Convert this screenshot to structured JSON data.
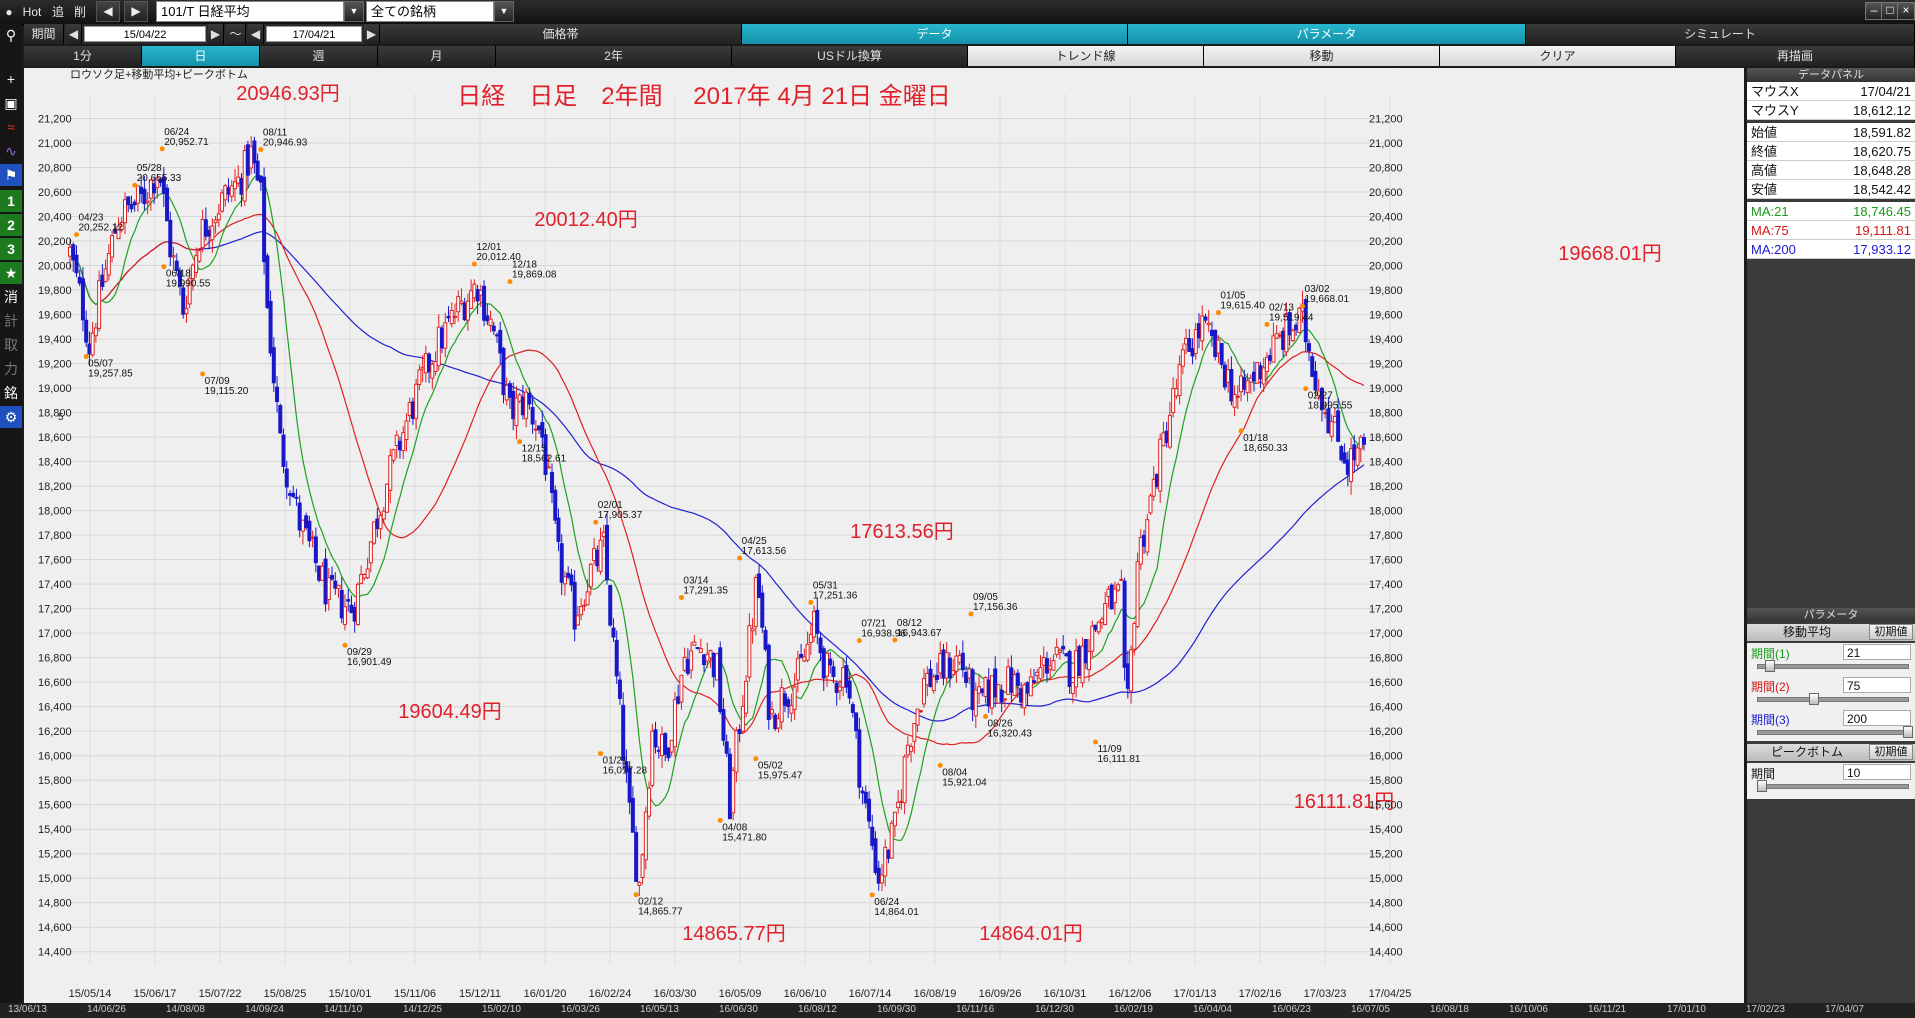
{
  "topbar": {
    "hot": "Hot",
    "tsui": "追",
    "sakujo": "削",
    "ticker": "101/T 日経平均",
    "universe": "全ての銘柄",
    "tabs": [
      "価格帯",
      "データ",
      "パラメータ",
      "シミュレート"
    ]
  },
  "row1": {
    "kikan": "期間",
    "from": "15/04/22",
    "tilde": "～",
    "to": "17/04/21"
  },
  "row2": {
    "items": [
      "1分",
      "日",
      "週",
      "月",
      "2年",
      "USドル換算",
      "トレンド線",
      "移動",
      "クリア",
      "再描画"
    ]
  },
  "left_toolbar": {
    "numbers": [
      "1",
      "2",
      "3"
    ],
    "chars": [
      "消",
      "計",
      "取",
      "力",
      "銘"
    ]
  },
  "chart": {
    "label": "ロウソク足+移動平均+ピークボトム",
    "title": "日経　日足　2年間　 2017年 4月 21日 金曜日",
    "left_partial": "5",
    "big_labels": [
      {
        "text": "20946.93円",
        "color": "#e0202a"
      },
      {
        "text": "20012.40円",
        "color": "#e0202a"
      },
      {
        "text": "19604.49円",
        "color": "#e0202a"
      },
      {
        "text": "17613.56円",
        "color": "#e0202a"
      },
      {
        "text": "14865.77円",
        "color": "#e0202a"
      },
      {
        "text": "14864.01円",
        "color": "#e0202a"
      },
      {
        "text": "16111.81円",
        "color": "#e0202a"
      },
      {
        "text": "19668.01円",
        "color": "#e0202a"
      }
    ],
    "colors": {
      "up": "#e02020",
      "down": "#1818c8",
      "ma21": "#20a020",
      "ma75": "#e02020",
      "ma200": "#2020d0"
    }
  },
  "chart_data": {
    "type": "candlestick",
    "title": "日経　日足　2年間　 2017年 4月 21日 金曜日",
    "y_ticks": [
      "21,200",
      "21,000",
      "20,800",
      "20,600",
      "20,400",
      "20,200",
      "20,000",
      "19,800",
      "19,600",
      "19,400",
      "19,200",
      "19,000",
      "18,800",
      "18,600",
      "18,400",
      "18,200",
      "18,000",
      "17,800",
      "17,600",
      "17,400",
      "17,200",
      "17,000",
      "16,800",
      "16,600",
      "16,400",
      "16,200",
      "16,000",
      "15,800",
      "15,600",
      "15,400",
      "15,200",
      "15,000",
      "14,800",
      "14,600",
      "14,400"
    ],
    "ylim": [
      14300,
      21400
    ],
    "x_ticks": [
      "15/05/14",
      "15/06/17",
      "15/07/22",
      "15/08/25",
      "15/10/01",
      "15/11/06",
      "15/12/11",
      "16/01/20",
      "16/02/24",
      "16/03/30",
      "16/05/09",
      "16/06/10",
      "16/07/14",
      "16/08/19",
      "16/09/26",
      "16/10/31",
      "16/12/06",
      "17/01/13",
      "17/02/16",
      "17/03/23",
      "17/04/25"
    ],
    "sub_x_ticks": [
      "13/06/13",
      "14/06/26",
      "14/08/08",
      "14/09/24",
      "14/11/10",
      "14/12/25",
      "15/02/10",
      "16/03/26",
      "16/05/13",
      "16/06/30",
      "16/08/12",
      "16/09/30",
      "16/11/16",
      "16/12/30",
      "16/02/19",
      "16/04/04",
      "16/06/23",
      "16/07/05",
      "16/08/18",
      "16/10/06",
      "16/11/21",
      "17/01/10",
      "17/02/23",
      "17/04/07"
    ],
    "peaks": [
      {
        "date": "04/23",
        "value": "20,252.12"
      },
      {
        "date": "05/28",
        "value": "20,655.33"
      },
      {
        "date": "06/24",
        "value": "20,952.71"
      },
      {
        "date": "08/11",
        "value": "20,946.93"
      },
      {
        "date": "12/01",
        "value": "20,012.40"
      },
      {
        "date": "12/18",
        "value": "19,869.08"
      },
      {
        "date": "02/01",
        "value": "17,905.37"
      },
      {
        "date": "03/14",
        "value": "17,291.35"
      },
      {
        "date": "04/25",
        "value": "17,613.56"
      },
      {
        "date": "05/31",
        "value": "17,251.36"
      },
      {
        "date": "07/21",
        "value": "16,938.96"
      },
      {
        "date": "08/12",
        "value": "16,943.67"
      },
      {
        "date": "09/05",
        "value": "17,156.36"
      },
      {
        "date": "01/05",
        "value": "19,615.40"
      },
      {
        "date": "02/13",
        "value": "19,519.44"
      },
      {
        "date": "03/02",
        "value": "19,668.01"
      }
    ],
    "bottoms": [
      {
        "date": "05/07",
        "value": "19,257.85"
      },
      {
        "date": "06/18",
        "value": "19,990.55"
      },
      {
        "date": "07/09",
        "value": "19,115.20"
      },
      {
        "date": "09/29",
        "value": "16,901.49"
      },
      {
        "date": "12/15",
        "value": "18,562.61"
      },
      {
        "date": "01/21",
        "value": "16,017.28"
      },
      {
        "date": "02/12",
        "value": "14,865.77"
      },
      {
        "date": "04/08",
        "value": "15,471.80"
      },
      {
        "date": "05/02",
        "value": "15,975.47"
      },
      {
        "date": "06/24",
        "value": "14,864.01"
      },
      {
        "date": "08/04",
        "value": "15,921.04"
      },
      {
        "date": "08/26",
        "value": "16,320.43"
      },
      {
        "date": "11/09",
        "value": "16,111.81"
      },
      {
        "date": "01/18",
        "value": "18,650.33"
      },
      {
        "date": "02/27",
        "value": "18,995.55"
      }
    ],
    "ma_periods": [
      21,
      75,
      200
    ],
    "close_path": [
      [
        0,
        20100
      ],
      [
        8,
        19650
      ],
      [
        12,
        19350
      ],
      [
        20,
        19850
      ],
      [
        30,
        20400
      ],
      [
        45,
        20550
      ],
      [
        55,
        20800
      ],
      [
        62,
        20150
      ],
      [
        70,
        19650
      ],
      [
        80,
        20250
      ],
      [
        95,
        20550
      ],
      [
        105,
        20700
      ],
      [
        112,
        20900
      ],
      [
        118,
        20550
      ],
      [
        122,
        19650
      ],
      [
        130,
        18550
      ],
      [
        142,
        17900
      ],
      [
        160,
        17300
      ],
      [
        175,
        17200
      ],
      [
        185,
        17700
      ],
      [
        195,
        18200
      ],
      [
        210,
        18800
      ],
      [
        225,
        19300
      ],
      [
        240,
        19650
      ],
      [
        252,
        19850
      ],
      [
        262,
        19450
      ],
      [
        272,
        18800
      ],
      [
        282,
        18900
      ],
      [
        292,
        18600
      ],
      [
        302,
        17600
      ],
      [
        312,
        17150
      ],
      [
        322,
        17500
      ],
      [
        330,
        17700
      ],
      [
        338,
        16600
      ],
      [
        346,
        15500
      ],
      [
        352,
        14950
      ],
      [
        360,
        16200
      ],
      [
        368,
        16000
      ],
      [
        380,
        16800
      ],
      [
        392,
        16900
      ],
      [
        400,
        16700
      ],
      [
        408,
        15600
      ],
      [
        416,
        16500
      ],
      [
        425,
        17450
      ],
      [
        433,
        16300
      ],
      [
        441,
        16500
      ],
      [
        449,
        16600
      ],
      [
        460,
        17050
      ],
      [
        470,
        16600
      ],
      [
        480,
        16700
      ],
      [
        490,
        15700
      ],
      [
        500,
        15000
      ],
      [
        510,
        15400
      ],
      [
        518,
        16100
      ],
      [
        528,
        16600
      ],
      [
        540,
        16700
      ],
      [
        550,
        16800
      ],
      [
        560,
        16400
      ],
      [
        570,
        16550
      ],
      [
        582,
        16600
      ],
      [
        592,
        16500
      ],
      [
        605,
        16800
      ],
      [
        620,
        16700
      ],
      [
        632,
        17000
      ],
      [
        642,
        17250
      ],
      [
        650,
        17300
      ],
      [
        653,
        16200
      ],
      [
        660,
        17600
      ],
      [
        670,
        18200
      ],
      [
        680,
        18800
      ],
      [
        690,
        19300
      ],
      [
        700,
        19500
      ],
      [
        712,
        19200
      ],
      [
        722,
        18900
      ],
      [
        732,
        19100
      ],
      [
        742,
        19300
      ],
      [
        752,
        19450
      ],
      [
        762,
        19550
      ],
      [
        770,
        19100
      ],
      [
        780,
        18700
      ],
      [
        790,
        18400
      ],
      [
        800,
        18500
      ]
    ]
  },
  "data_panel": {
    "title": "データパネル",
    "rows": [
      {
        "k": "マウスX",
        "v": "17/04/21"
      },
      {
        "k": "マウスY",
        "v": "18,612.12"
      },
      {
        "k": "始値",
        "v": "18,591.82"
      },
      {
        "k": "終値",
        "v": "18,620.75"
      },
      {
        "k": "高値",
        "v": "18,648.28"
      },
      {
        "k": "安値",
        "v": "18,542.42"
      },
      {
        "k": "MA:21",
        "v": "18,746.45",
        "color": "#1a9a1a"
      },
      {
        "k": "MA:75",
        "v": "19,111.81",
        "color": "#d01818"
      },
      {
        "k": "MA:200",
        "v": "17,933.12",
        "color": "#1a1ad0"
      }
    ]
  },
  "param_panel": {
    "title": "パラメータ",
    "ma_section": "移動平均",
    "init_label": "初期値",
    "period1": "期間(1)",
    "p1": "21",
    "period2": "期間(2)",
    "p2": "75",
    "period3": "期間(3)",
    "p3": "200",
    "pb_section": "ピークボトム",
    "pb_label": "期間",
    "pb_value": "10"
  }
}
